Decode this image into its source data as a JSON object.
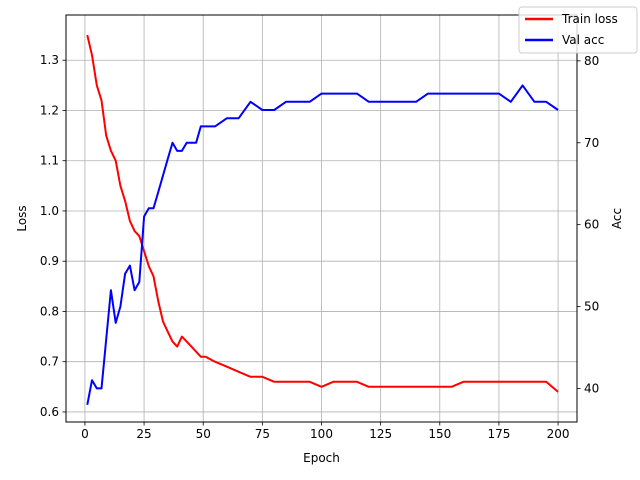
{
  "chart_data": {
    "type": "line",
    "title": "",
    "xlabel": "Epoch",
    "ylabel_left": "Loss",
    "ylabel_right": "Acc",
    "xlim": [
      -8,
      208
    ],
    "ylim_left": [
      0.58,
      1.39
    ],
    "ylim_right": [
      35.9,
      85.6
    ],
    "xticks": [
      "0",
      "25",
      "50",
      "75",
      "100",
      "125",
      "150",
      "175",
      "200"
    ],
    "yticks_left": [
      "0.6",
      "0.7",
      "0.8",
      "0.9",
      "1.0",
      "1.1",
      "1.2",
      "1.3"
    ],
    "yticks_right": [
      "40",
      "50",
      "60",
      "70",
      "80"
    ],
    "grid": true,
    "legend_position": "top-right",
    "series": [
      {
        "name": "Train loss",
        "axis": "left",
        "color": "#ff0000",
        "x": [
          1,
          3,
          5,
          7,
          9,
          11,
          13,
          15,
          17,
          19,
          21,
          23,
          25,
          27,
          29,
          31,
          33,
          35,
          37,
          39,
          41,
          43,
          45,
          47,
          49,
          51,
          55,
          60,
          65,
          70,
          75,
          80,
          85,
          90,
          95,
          100,
          105,
          110,
          115,
          120,
          125,
          130,
          135,
          140,
          145,
          150,
          155,
          160,
          165,
          170,
          175,
          180,
          185,
          190,
          195,
          200
        ],
        "values": [
          1.35,
          1.31,
          1.25,
          1.22,
          1.15,
          1.12,
          1.1,
          1.05,
          1.02,
          0.98,
          0.96,
          0.95,
          0.92,
          0.89,
          0.87,
          0.82,
          0.78,
          0.76,
          0.74,
          0.73,
          0.75,
          0.74,
          0.73,
          0.72,
          0.71,
          0.71,
          0.7,
          0.69,
          0.68,
          0.67,
          0.67,
          0.66,
          0.66,
          0.66,
          0.66,
          0.65,
          0.66,
          0.66,
          0.66,
          0.65,
          0.65,
          0.65,
          0.65,
          0.65,
          0.65,
          0.65,
          0.65,
          0.66,
          0.66,
          0.66,
          0.66,
          0.66,
          0.66,
          0.66,
          0.66,
          0.64
        ]
      },
      {
        "name": "Val acc",
        "axis": "right",
        "color": "#0000ff",
        "x": [
          1,
          3,
          5,
          7,
          9,
          11,
          13,
          15,
          17,
          19,
          21,
          23,
          25,
          27,
          29,
          31,
          33,
          35,
          37,
          39,
          41,
          43,
          45,
          47,
          49,
          51,
          55,
          60,
          65,
          70,
          75,
          80,
          85,
          90,
          95,
          100,
          105,
          110,
          115,
          120,
          125,
          130,
          135,
          140,
          145,
          150,
          155,
          160,
          165,
          170,
          175,
          180,
          185,
          190,
          195,
          200
        ],
        "values": [
          38,
          41,
          40,
          40,
          46,
          52,
          48,
          50,
          54,
          55,
          52,
          53,
          61,
          62,
          62,
          64,
          66,
          68,
          70,
          69,
          69,
          70,
          70,
          70,
          72,
          72,
          72,
          73,
          73,
          75,
          74,
          74,
          75,
          75,
          75,
          76,
          76,
          76,
          76,
          75,
          75,
          75,
          75,
          75,
          76,
          76,
          76,
          76,
          76,
          76,
          76,
          75,
          77,
          75,
          75,
          74
        ]
      }
    ]
  }
}
